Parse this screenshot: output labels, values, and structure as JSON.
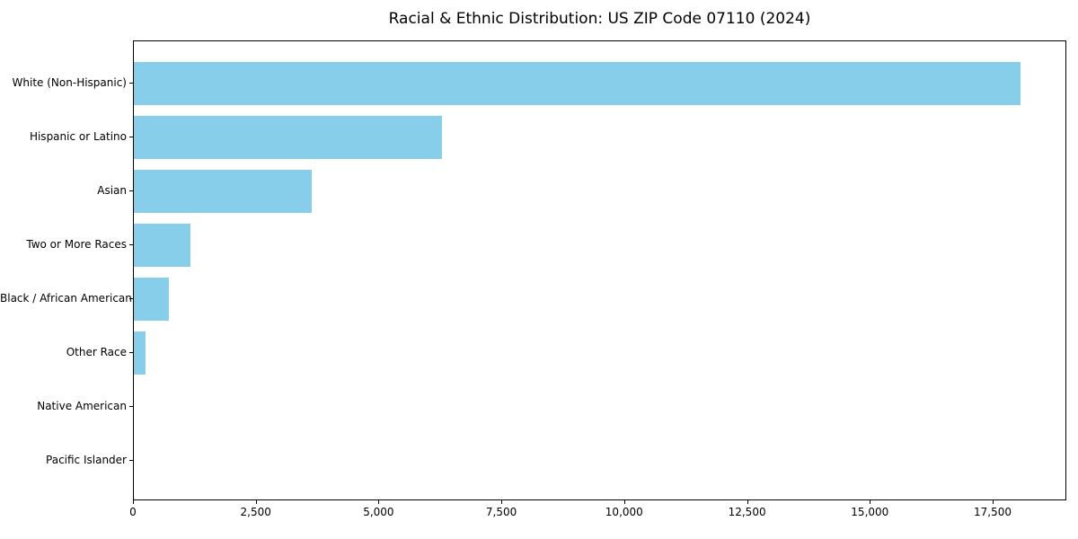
{
  "chart_data": {
    "type": "bar",
    "orientation": "horizontal",
    "title": "Racial & Ethnic Distribution: US ZIP Code 07110 (2024)",
    "categories": [
      "White (Non-Hispanic)",
      "Hispanic or Latino",
      "Asian",
      "Two or More Races",
      "Black / African American",
      "Other Race",
      "Native American",
      "Pacific Islander"
    ],
    "values": [
      18050,
      6280,
      3620,
      1150,
      720,
      230,
      0,
      0
    ],
    "bar_color": "#87CEEB",
    "xlabel": "",
    "ylabel": "",
    "xlim": [
      0,
      19000
    ],
    "x_ticks": [
      0,
      2500,
      5000,
      7500,
      10000,
      12500,
      15000,
      17500
    ],
    "x_tick_labels": [
      "0",
      "2,500",
      "5,000",
      "7,500",
      "10,000",
      "12,500",
      "15,000",
      "17,500"
    ],
    "grid": false,
    "legend": null
  }
}
